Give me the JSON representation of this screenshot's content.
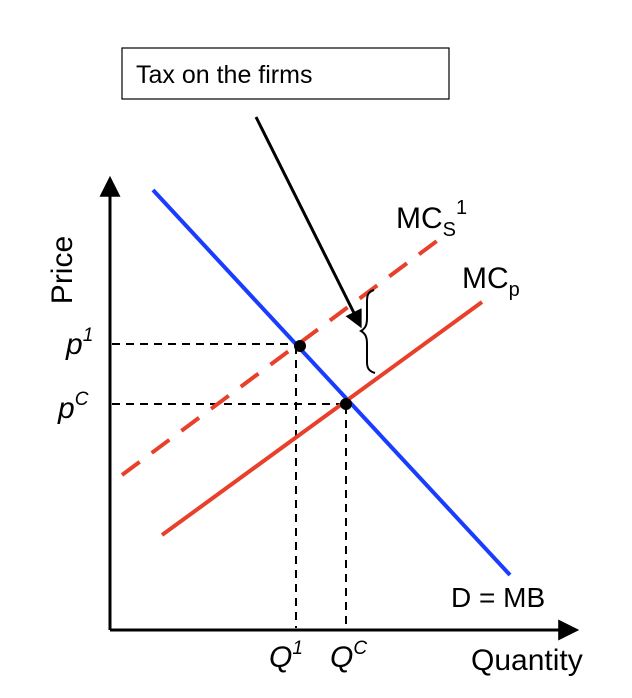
{
  "callout": {
    "text": "Tax on the firms"
  },
  "axes": {
    "y_label": "Price",
    "x_label": "Quantity"
  },
  "curves": {
    "demand": {
      "label": "D = MB",
      "color": "#1a3cff"
    },
    "private_mc": {
      "label_main": "MC",
      "label_sub": "p",
      "color": "#e8402a"
    },
    "social_mc": {
      "label_main": "MC",
      "label_sub": "S",
      "label_sup": "1",
      "color": "#e8402a"
    }
  },
  "price_levels": {
    "p1": {
      "main": "p",
      "sup": "1"
    },
    "pc": {
      "main": "p",
      "sup": "C"
    }
  },
  "quantity_levels": {
    "q1": {
      "main": "Q",
      "sup": "1"
    },
    "qc": {
      "main": "Q",
      "sup": "C"
    }
  },
  "colors": {
    "axis": "#000000",
    "guide": "#000000",
    "point": "#000000"
  }
}
